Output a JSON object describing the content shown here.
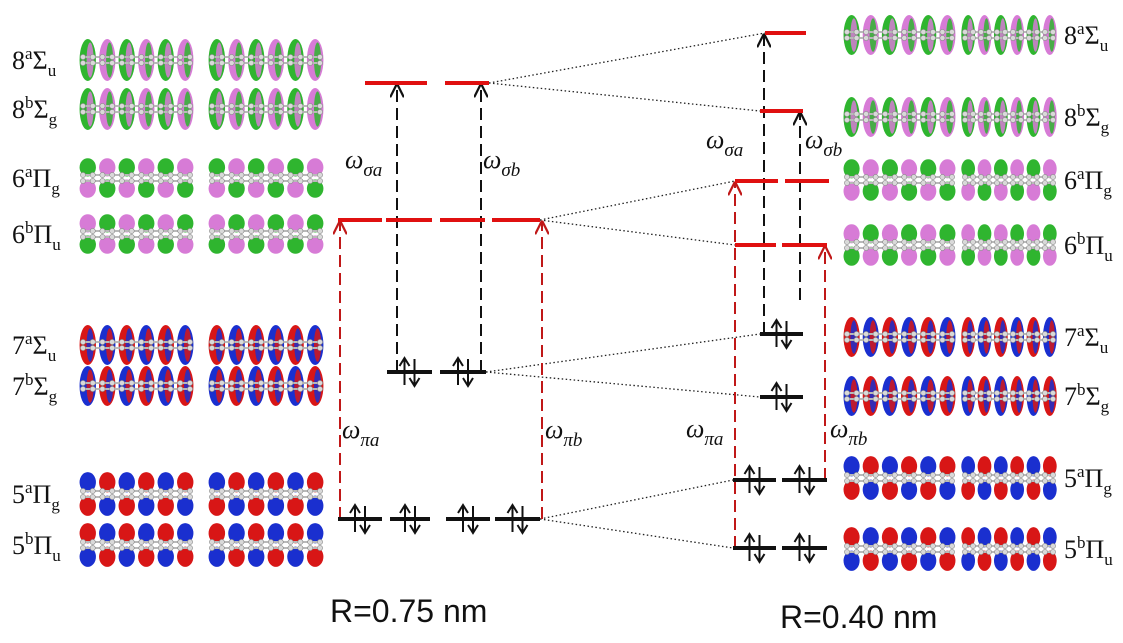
{
  "colors": {
    "unoccupied_level": "#e01010",
    "occupied_level": "#111111",
    "transition_sigma": "#111111",
    "transition_pi": "#c01818",
    "lobe_green": "#2fb52f",
    "lobe_pink": "#d77bd6",
    "lobe_red": "#d81616",
    "lobe_blue": "#1a2fcf",
    "atom_grey": "#b9b9b9"
  },
  "panels": [
    {
      "id": "left",
      "caption": "R=0.75 nm",
      "orbitals": [
        {
          "num": "8",
          "sup": "a",
          "sym": "Σ",
          "sub": "u",
          "style": "green-pink-rings"
        },
        {
          "num": "8",
          "sup": "b",
          "sym": "Σ",
          "sub": "g",
          "style": "green-pink-rings"
        },
        {
          "num": "6",
          "sup": "a",
          "sym": "Π",
          "sub": "g",
          "style": "green-pink-pi"
        },
        {
          "num": "6",
          "sup": "b",
          "sym": "Π",
          "sub": "u",
          "style": "pink-green-pi"
        },
        {
          "num": "7",
          "sup": "a",
          "sym": "Σ",
          "sub": "u",
          "style": "red-blue-rings"
        },
        {
          "num": "7",
          "sup": "b",
          "sym": "Σ",
          "sub": "g",
          "style": "blue-red-rings"
        },
        {
          "num": "5",
          "sup": "a",
          "sym": "Π",
          "sub": "g",
          "style": "blue-red-pi"
        },
        {
          "num": "5",
          "sup": "b",
          "sym": "Π",
          "sub": "u",
          "style": "red-blue-pi"
        }
      ],
      "transitions": [
        {
          "symbol": "ω",
          "sub": "σa"
        },
        {
          "symbol": "ω",
          "sub": "σb"
        },
        {
          "symbol": "ω",
          "sub": "πa"
        },
        {
          "symbol": "ω",
          "sub": "πb"
        }
      ]
    },
    {
      "id": "right",
      "caption": "R=0.40 nm",
      "orbitals": [
        {
          "num": "8",
          "sup": "a",
          "sym": "Σ",
          "sub": "u",
          "style": "green-pink-rings"
        },
        {
          "num": "8",
          "sup": "b",
          "sym": "Σ",
          "sub": "g",
          "style": "green-pink-rings"
        },
        {
          "num": "6",
          "sup": "a",
          "sym": "Π",
          "sub": "g",
          "style": "green-pink-pi"
        },
        {
          "num": "6",
          "sup": "b",
          "sym": "Π",
          "sub": "u",
          "style": "pink-green-pi"
        },
        {
          "num": "7",
          "sup": "a",
          "sym": "Σ",
          "sub": "u",
          "style": "red-blue-rings"
        },
        {
          "num": "7",
          "sup": "b",
          "sym": "Σ",
          "sub": "g",
          "style": "blue-red-rings"
        },
        {
          "num": "5",
          "sup": "a",
          "sym": "Π",
          "sub": "g",
          "style": "blue-red-pi"
        },
        {
          "num": "5",
          "sup": "b",
          "sym": "Π",
          "sub": "u",
          "style": "red-blue-pi"
        }
      ],
      "transitions": [
        {
          "symbol": "ω",
          "sub": "σa"
        },
        {
          "symbol": "ω",
          "sub": "σb"
        },
        {
          "symbol": "ω",
          "sub": "πa"
        },
        {
          "symbol": "ω",
          "sub": "πb"
        }
      ]
    }
  ]
}
